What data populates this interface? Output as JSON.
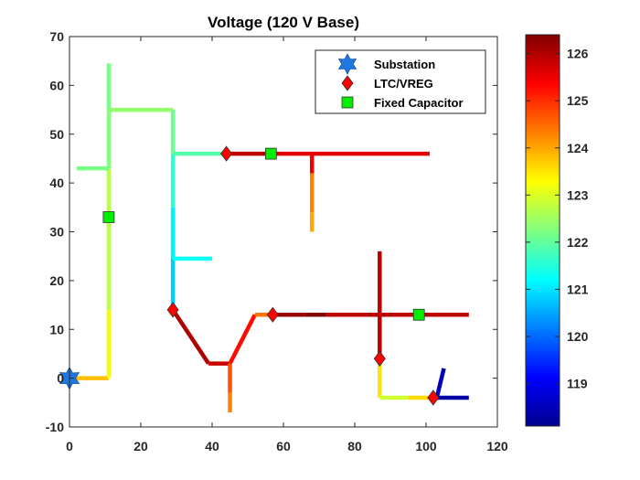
{
  "chart_data": {
    "type": "line",
    "title": "Voltage (120 V Base)",
    "xlabel": "",
    "ylabel": "",
    "xlim": [
      0,
      120
    ],
    "ylim": [
      -10,
      70
    ],
    "xticks": [
      0,
      20,
      40,
      60,
      80,
      100,
      120
    ],
    "yticks": [
      -10,
      0,
      10,
      20,
      30,
      40,
      50,
      60,
      70
    ],
    "grid": false,
    "colorbar": {
      "label": "",
      "range": [
        118.1,
        126.4
      ],
      "ticks": [
        119,
        120,
        121,
        122,
        123,
        124,
        125,
        126
      ],
      "colormap": "jet"
    },
    "legend": {
      "placement": "top-right",
      "entries": [
        {
          "label": "Substation",
          "marker": "hexagram",
          "color": "#1f78e0"
        },
        {
          "label": "LTC/VREG",
          "marker": "diamond",
          "color": "#ff0000"
        },
        {
          "label": "Fixed Capacitor",
          "marker": "square",
          "color": "#00ee00"
        }
      ]
    },
    "segments": [
      {
        "from": [
          0,
          0
        ],
        "to": [
          11,
          0
        ],
        "v": 123.8
      },
      {
        "from": [
          11,
          0
        ],
        "to": [
          11,
          14
        ],
        "v": 123.2
      },
      {
        "from": [
          11,
          14
        ],
        "to": [
          11,
          43
        ],
        "v": 122.7
      },
      {
        "from": [
          11,
          43
        ],
        "to": [
          11,
          55
        ],
        "v": 122.3
      },
      {
        "from": [
          11,
          55
        ],
        "to": [
          11,
          64.5
        ],
        "v": 122.2
      },
      {
        "from": [
          2,
          43
        ],
        "to": [
          11,
          43
        ],
        "v": 122.2
      },
      {
        "from": [
          11,
          55
        ],
        "to": [
          29,
          55
        ],
        "v": 122.4
      },
      {
        "from": [
          29,
          55
        ],
        "to": [
          29,
          46
        ],
        "v": 122.1
      },
      {
        "from": [
          29,
          46
        ],
        "to": [
          29,
          35
        ],
        "v": 121.6
      },
      {
        "from": [
          29,
          35
        ],
        "to": [
          29,
          24.5
        ],
        "v": 121.1
      },
      {
        "from": [
          29,
          24.5
        ],
        "to": [
          29,
          14
        ],
        "v": 120.8
      },
      {
        "from": [
          29,
          46
        ],
        "to": [
          44,
          46
        ],
        "v": 121.9
      },
      {
        "from": [
          29,
          24.5
        ],
        "to": [
          40,
          24.5
        ],
        "v": 121.3
      },
      {
        "from": [
          44,
          46
        ],
        "to": [
          56,
          46
        ],
        "v": 125.9
      },
      {
        "from": [
          56,
          46
        ],
        "to": [
          101,
          46
        ],
        "v": 125.6
      },
      {
        "from": [
          68,
          46
        ],
        "to": [
          68,
          42
        ],
        "v": 125.5
      },
      {
        "from": [
          68,
          42
        ],
        "to": [
          68,
          34
        ],
        "v": 124.3
      },
      {
        "from": [
          68,
          34
        ],
        "to": [
          68,
          30
        ],
        "v": 124.0
      },
      {
        "from": [
          29,
          14
        ],
        "to": [
          39,
          3
        ],
        "v": 126.0
      },
      {
        "from": [
          39,
          3
        ],
        "to": [
          45,
          3
        ],
        "v": 125.8
      },
      {
        "from": [
          45,
          3
        ],
        "to": [
          52,
          13
        ],
        "v": 125.3
      },
      {
        "from": [
          52,
          13
        ],
        "to": [
          57,
          13
        ],
        "v": 124.4
      },
      {
        "from": [
          45,
          3
        ],
        "to": [
          45,
          -3
        ],
        "v": 124.7
      },
      {
        "from": [
          45,
          -3
        ],
        "to": [
          45,
          -7
        ],
        "v": 124.3
      },
      {
        "from": [
          57,
          13
        ],
        "to": [
          66,
          13
        ],
        "v": 126.2
      },
      {
        "from": [
          66,
          13
        ],
        "to": [
          72,
          13
        ],
        "v": 126.4
      },
      {
        "from": [
          72,
          13
        ],
        "to": [
          112,
          13
        ],
        "v": 125.9
      },
      {
        "from": [
          87,
          26
        ],
        "to": [
          87,
          4
        ],
        "v": 125.9
      },
      {
        "from": [
          87,
          4
        ],
        "to": [
          87,
          -4
        ],
        "v": 123.5
      },
      {
        "from": [
          87,
          -4
        ],
        "to": [
          95,
          -4
        ],
        "v": 122.9
      },
      {
        "from": [
          95,
          -4
        ],
        "to": [
          102,
          -4
        ],
        "v": 123.6
      },
      {
        "from": [
          102,
          -4
        ],
        "to": [
          112,
          -4
        ],
        "v": 118.3
      },
      {
        "from": [
          103,
          -4
        ],
        "to": [
          105,
          2
        ],
        "v": 118.5
      }
    ],
    "substations": [
      {
        "x": 0,
        "y": 0
      }
    ],
    "regulators": [
      {
        "x": 29,
        "y": 14
      },
      {
        "x": 44,
        "y": 46
      },
      {
        "x": 57,
        "y": 13
      },
      {
        "x": 87,
        "y": 4
      },
      {
        "x": 102,
        "y": -4
      }
    ],
    "capacitors": [
      {
        "x": 11,
        "y": 33
      },
      {
        "x": 56.5,
        "y": 46
      },
      {
        "x": 98,
        "y": 13
      }
    ]
  }
}
